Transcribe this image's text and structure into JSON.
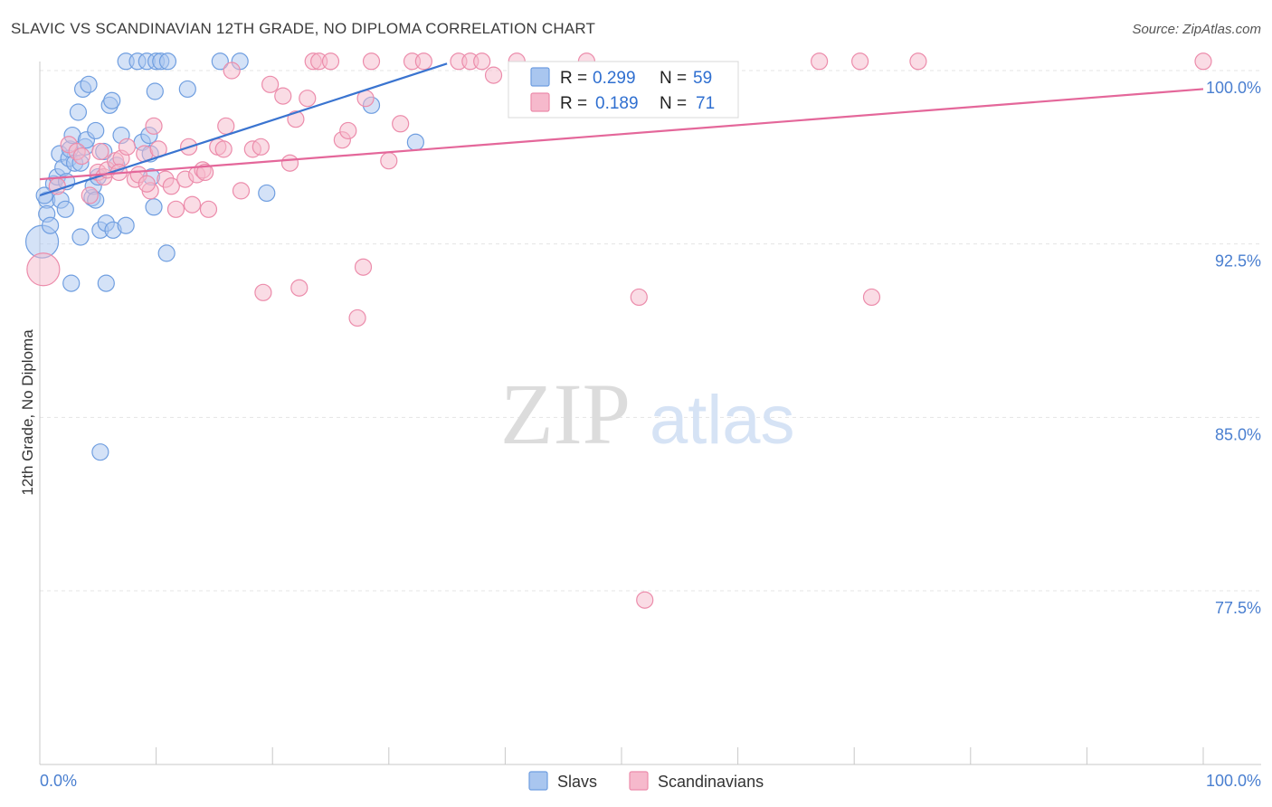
{
  "header": {
    "title": "SLAVIC VS SCANDINAVIAN 12TH GRADE, NO DIPLOMA CORRELATION CHART",
    "source": "Source: ZipAtlas.com"
  },
  "watermark": {
    "zip": "ZIP",
    "atlas": "atlas"
  },
  "legend": {
    "r_label": "R =",
    "n_label": "N =",
    "rows": [
      {
        "name": "Slavs",
        "r": "0.299",
        "n": "59"
      },
      {
        "name": "Scandinavians",
        "r": "0.189",
        "n": "71"
      }
    ]
  },
  "colors": {
    "slavs_fill": "#a9c6ef",
    "slavs_stroke": "#6f9ee0",
    "slavs_line": "#3a74d0",
    "scand_fill": "#f6b9cc",
    "scand_stroke": "#ec8cab",
    "scand_line": "#e4679a",
    "tick_color": "#4a7fd0"
  },
  "chart_data": {
    "type": "scatter",
    "title": "SLAVIC VS SCANDINAVIAN 12TH GRADE, NO DIPLOMA CORRELATION CHART",
    "xlabel": "",
    "ylabel": "12th Grade, No Diploma",
    "xlim": [
      0,
      100
    ],
    "ylim": [
      70,
      101.5
    ],
    "x_tick_labels": [
      "0.0%",
      "100.0%"
    ],
    "y_ticks": [
      {
        "value": 100,
        "label": "100.0%"
      },
      {
        "value": 92.5,
        "label": "92.5%"
      },
      {
        "value": 85,
        "label": "85.0%"
      },
      {
        "value": 77.5,
        "label": "77.5%"
      }
    ],
    "series": [
      {
        "name": "Slavs",
        "r": 0.299,
        "n": 59,
        "trend": {
          "x0": 0,
          "y0": 94.6,
          "x1": 35,
          "y1": 100.3
        },
        "points": [
          {
            "x": 0.2,
            "y": 92.6,
            "s": 2.0
          },
          {
            "x": 0.6,
            "y": 94.4,
            "s": 1
          },
          {
            "x": 0.6,
            "y": 93.8,
            "s": 1
          },
          {
            "x": 0.9,
            "y": 93.3,
            "s": 1
          },
          {
            "x": 1.2,
            "y": 95.1,
            "s": 1
          },
          {
            "x": 1.5,
            "y": 95.4,
            "s": 1
          },
          {
            "x": 1.7,
            "y": 96.4,
            "s": 1
          },
          {
            "x": 1.8,
            "y": 94.4,
            "s": 1
          },
          {
            "x": 2.0,
            "y": 95.8,
            "s": 1
          },
          {
            "x": 2.2,
            "y": 94.0,
            "s": 1
          },
          {
            "x": 2.3,
            "y": 95.2,
            "s": 1
          },
          {
            "x": 2.5,
            "y": 96.2,
            "s": 1
          },
          {
            "x": 2.6,
            "y": 96.6,
            "s": 1
          },
          {
            "x": 2.7,
            "y": 90.8,
            "s": 1
          },
          {
            "x": 2.8,
            "y": 97.2,
            "s": 1
          },
          {
            "x": 3.0,
            "y": 96.0,
            "s": 1
          },
          {
            "x": 3.3,
            "y": 98.2,
            "s": 1
          },
          {
            "x": 3.5,
            "y": 96.0,
            "s": 1
          },
          {
            "x": 3.5,
            "y": 92.8,
            "s": 1
          },
          {
            "x": 3.7,
            "y": 99.2,
            "s": 1
          },
          {
            "x": 3.9,
            "y": 96.7,
            "s": 1
          },
          {
            "x": 4.0,
            "y": 97.0,
            "s": 1
          },
          {
            "x": 4.2,
            "y": 99.4,
            "s": 1
          },
          {
            "x": 4.5,
            "y": 94.5,
            "s": 1
          },
          {
            "x": 4.6,
            "y": 95.0,
            "s": 1
          },
          {
            "x": 4.8,
            "y": 94.4,
            "s": 1
          },
          {
            "x": 4.8,
            "y": 97.4,
            "s": 1
          },
          {
            "x": 5.0,
            "y": 95.4,
            "s": 1
          },
          {
            "x": 5.2,
            "y": 83.5,
            "s": 1
          },
          {
            "x": 5.2,
            "y": 93.1,
            "s": 1
          },
          {
            "x": 5.5,
            "y": 96.5,
            "s": 1
          },
          {
            "x": 5.7,
            "y": 93.4,
            "s": 1
          },
          {
            "x": 5.7,
            "y": 90.8,
            "s": 1
          },
          {
            "x": 6.0,
            "y": 98.5,
            "s": 1
          },
          {
            "x": 6.2,
            "y": 98.7,
            "s": 1
          },
          {
            "x": 6.3,
            "y": 93.1,
            "s": 1
          },
          {
            "x": 6.6,
            "y": 95.9,
            "s": 1
          },
          {
            "x": 7.0,
            "y": 97.2,
            "s": 1
          },
          {
            "x": 7.4,
            "y": 93.3,
            "s": 1
          },
          {
            "x": 7.4,
            "y": 100.4,
            "s": 1
          },
          {
            "x": 8.4,
            "y": 100.4,
            "s": 1
          },
          {
            "x": 8.8,
            "y": 96.9,
            "s": 1
          },
          {
            "x": 9.2,
            "y": 100.4,
            "s": 1
          },
          {
            "x": 9.4,
            "y": 97.2,
            "s": 1
          },
          {
            "x": 9.5,
            "y": 96.4,
            "s": 1
          },
          {
            "x": 9.6,
            "y": 95.4,
            "s": 1
          },
          {
            "x": 9.8,
            "y": 94.1,
            "s": 1
          },
          {
            "x": 9.9,
            "y": 99.1,
            "s": 1
          },
          {
            "x": 10.0,
            "y": 100.4,
            "s": 1
          },
          {
            "x": 10.4,
            "y": 100.4,
            "s": 1
          },
          {
            "x": 10.9,
            "y": 92.1,
            "s": 1
          },
          {
            "x": 11.0,
            "y": 100.4,
            "s": 1
          },
          {
            "x": 12.7,
            "y": 99.2,
            "s": 1
          },
          {
            "x": 15.5,
            "y": 100.4,
            "s": 1
          },
          {
            "x": 17.2,
            "y": 100.4,
            "s": 1
          },
          {
            "x": 19.5,
            "y": 94.7,
            "s": 1
          },
          {
            "x": 28.5,
            "y": 98.5,
            "s": 1
          },
          {
            "x": 32.3,
            "y": 96.9,
            "s": 1
          },
          {
            "x": 0.4,
            "y": 94.6,
            "s": 1
          }
        ]
      },
      {
        "name": "Scandinavians",
        "r": 0.189,
        "n": 71,
        "trend": {
          "x0": 0,
          "y0": 95.3,
          "x1": 100,
          "y1": 99.2
        },
        "points": [
          {
            "x": 0.3,
            "y": 91.4,
            "s": 2.0
          },
          {
            "x": 1.5,
            "y": 95.0,
            "s": 1
          },
          {
            "x": 2.5,
            "y": 96.8,
            "s": 1
          },
          {
            "x": 3.2,
            "y": 96.5,
            "s": 1
          },
          {
            "x": 3.6,
            "y": 96.3,
            "s": 1
          },
          {
            "x": 4.3,
            "y": 94.6,
            "s": 1
          },
          {
            "x": 5.0,
            "y": 95.6,
            "s": 1
          },
          {
            "x": 5.2,
            "y": 96.5,
            "s": 1
          },
          {
            "x": 5.5,
            "y": 95.4,
            "s": 1
          },
          {
            "x": 5.8,
            "y": 95.7,
            "s": 1
          },
          {
            "x": 6.5,
            "y": 96.1,
            "s": 1
          },
          {
            "x": 7.0,
            "y": 96.2,
            "s": 1
          },
          {
            "x": 7.5,
            "y": 96.7,
            "s": 1
          },
          {
            "x": 8.2,
            "y": 95.3,
            "s": 1
          },
          {
            "x": 8.5,
            "y": 95.5,
            "s": 1
          },
          {
            "x": 9.0,
            "y": 96.4,
            "s": 1
          },
          {
            "x": 9.5,
            "y": 94.8,
            "s": 1
          },
          {
            "x": 9.8,
            "y": 97.6,
            "s": 1
          },
          {
            "x": 10.2,
            "y": 96.6,
            "s": 1
          },
          {
            "x": 10.8,
            "y": 95.3,
            "s": 1
          },
          {
            "x": 11.3,
            "y": 95.0,
            "s": 1
          },
          {
            "x": 11.7,
            "y": 94.0,
            "s": 1
          },
          {
            "x": 12.5,
            "y": 95.3,
            "s": 1
          },
          {
            "x": 12.8,
            "y": 96.7,
            "s": 1
          },
          {
            "x": 13.1,
            "y": 94.2,
            "s": 1
          },
          {
            "x": 13.5,
            "y": 95.5,
            "s": 1
          },
          {
            "x": 14.0,
            "y": 95.7,
            "s": 1
          },
          {
            "x": 14.5,
            "y": 94.0,
            "s": 1
          },
          {
            "x": 15.3,
            "y": 96.7,
            "s": 1
          },
          {
            "x": 15.8,
            "y": 96.6,
            "s": 1
          },
          {
            "x": 16.5,
            "y": 100.0,
            "s": 1
          },
          {
            "x": 17.3,
            "y": 94.8,
            "s": 1
          },
          {
            "x": 18.3,
            "y": 96.6,
            "s": 1
          },
          {
            "x": 19.0,
            "y": 96.7,
            "s": 1
          },
          {
            "x": 19.2,
            "y": 90.4,
            "s": 1
          },
          {
            "x": 19.8,
            "y": 99.4,
            "s": 1
          },
          {
            "x": 20.9,
            "y": 98.9,
            "s": 1
          },
          {
            "x": 21.5,
            "y": 96.0,
            "s": 1
          },
          {
            "x": 22.0,
            "y": 97.9,
            "s": 1
          },
          {
            "x": 22.3,
            "y": 90.6,
            "s": 1
          },
          {
            "x": 23.0,
            "y": 98.8,
            "s": 1
          },
          {
            "x": 23.5,
            "y": 100.4,
            "s": 1
          },
          {
            "x": 24.0,
            "y": 100.4,
            "s": 1
          },
          {
            "x": 25.0,
            "y": 100.4,
            "s": 1
          },
          {
            "x": 26.0,
            "y": 97.0,
            "s": 1
          },
          {
            "x": 26.5,
            "y": 97.4,
            "s": 1
          },
          {
            "x": 27.3,
            "y": 89.3,
            "s": 1
          },
          {
            "x": 27.8,
            "y": 91.5,
            "s": 1
          },
          {
            "x": 28.0,
            "y": 98.8,
            "s": 1
          },
          {
            "x": 28.5,
            "y": 100.4,
            "s": 1
          },
          {
            "x": 30.0,
            "y": 96.1,
            "s": 1
          },
          {
            "x": 31.0,
            "y": 97.7,
            "s": 1
          },
          {
            "x": 32.0,
            "y": 100.4,
            "s": 1
          },
          {
            "x": 33.0,
            "y": 100.4,
            "s": 1
          },
          {
            "x": 36.0,
            "y": 100.4,
            "s": 1
          },
          {
            "x": 37.0,
            "y": 100.4,
            "s": 1
          },
          {
            "x": 38.0,
            "y": 100.4,
            "s": 1
          },
          {
            "x": 39.0,
            "y": 99.8,
            "s": 1
          },
          {
            "x": 41.0,
            "y": 100.4,
            "s": 1
          },
          {
            "x": 47.0,
            "y": 100.4,
            "s": 1
          },
          {
            "x": 51.5,
            "y": 90.2,
            "s": 1
          },
          {
            "x": 52.0,
            "y": 77.1,
            "s": 1
          },
          {
            "x": 67.0,
            "y": 100.4,
            "s": 1
          },
          {
            "x": 70.5,
            "y": 100.4,
            "s": 1
          },
          {
            "x": 71.5,
            "y": 90.2,
            "s": 1
          },
          {
            "x": 75.5,
            "y": 100.4,
            "s": 1
          },
          {
            "x": 100.0,
            "y": 100.4,
            "s": 1
          },
          {
            "x": 6.8,
            "y": 95.6,
            "s": 1
          },
          {
            "x": 9.2,
            "y": 95.1,
            "s": 1
          },
          {
            "x": 14.2,
            "y": 95.6,
            "s": 1
          },
          {
            "x": 16.0,
            "y": 97.6,
            "s": 1
          }
        ]
      }
    ]
  }
}
